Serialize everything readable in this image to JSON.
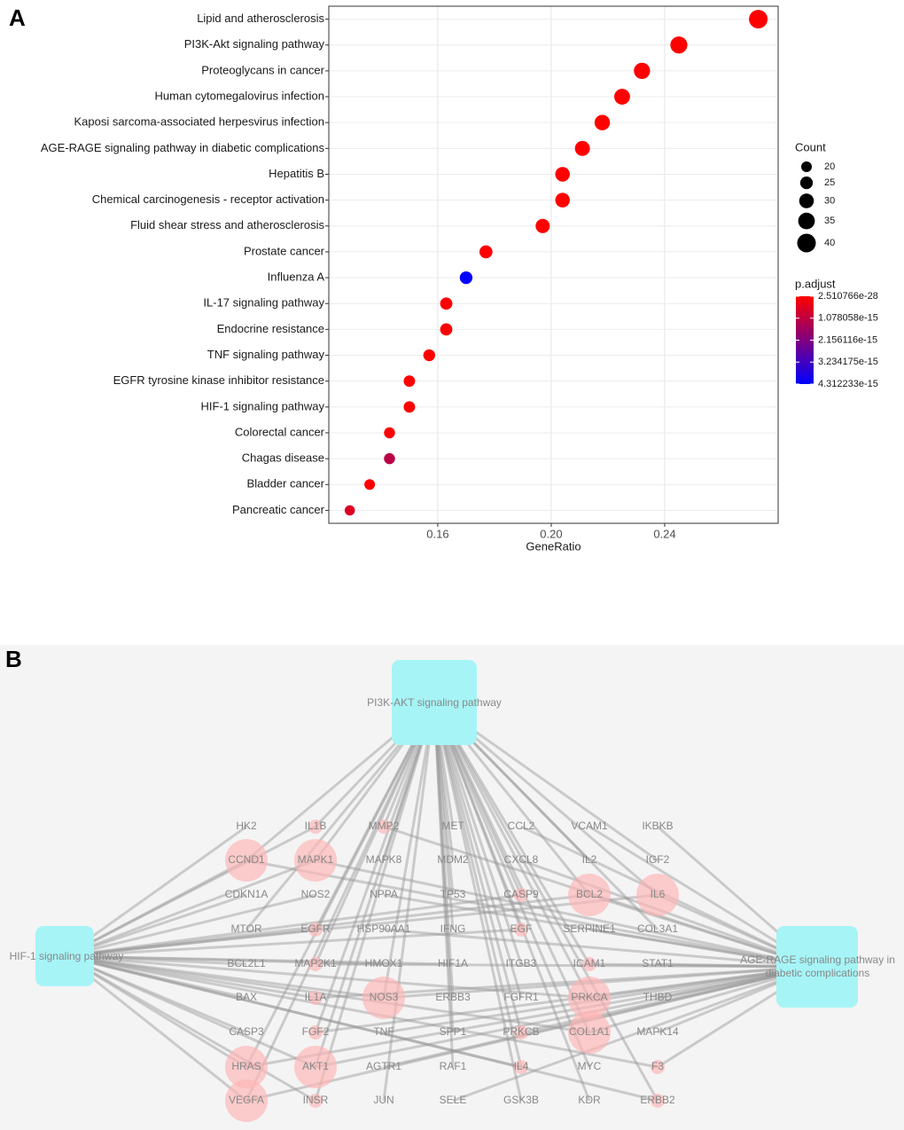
{
  "panel_labels": [
    "A",
    "B"
  ],
  "chart_data": {
    "type": "dot",
    "categories": [
      "Lipid and atherosclerosis",
      "PI3K-Akt signaling pathway",
      "Proteoglycans in cancer",
      "Human cytomegalovirus infection",
      "Kaposi sarcoma-associated herpesvirus infection",
      "AGE-RAGE signaling pathway in diabetic complications",
      "Hepatitis B",
      "Chemical carcinogenesis - receptor activation",
      "Fluid shear stress and atherosclerosis",
      "Prostate cancer",
      "Influenza A",
      "IL-17 signaling pathway",
      "Endocrine resistance",
      "TNF signaling pathway",
      "EGFR tyrosine kinase inhibitor resistance",
      "HIF-1 signaling pathway",
      "Colorectal cancer",
      "Chagas disease",
      "Bladder cancer",
      "Pancreatic cancer"
    ],
    "values": [
      0.273,
      0.245,
      0.232,
      0.225,
      0.218,
      0.211,
      0.204,
      0.204,
      0.197,
      0.177,
      0.17,
      0.163,
      0.163,
      0.157,
      0.15,
      0.15,
      0.143,
      0.143,
      0.136,
      0.129
    ],
    "count": [
      40,
      36,
      34,
      33,
      32,
      31,
      30,
      30,
      29,
      26,
      25,
      24,
      24,
      23,
      22,
      22,
      21,
      21,
      20,
      19
    ],
    "p_adjust": [
      2.510766e-28,
      1e-24,
      1e-22,
      1e-21,
      1e-20,
      1e-19,
      1e-19,
      1e-18,
      1e-18,
      2e-17,
      4.312233e-15,
      1e-17,
      5e-17,
      1e-17,
      1e-17,
      1e-17,
      5e-17,
      1.2e-15,
      5e-17,
      6e-16
    ],
    "xlabel": "GeneRatio",
    "xlim": [
      0.1216,
      0.28
    ],
    "xticks": [
      0.16,
      0.2,
      0.24
    ],
    "xtick_labels": [
      "0.16",
      "0.20",
      "0.24"
    ],
    "grid": true,
    "size_legend": {
      "title": "Count",
      "values": [
        20,
        25,
        30,
        35,
        40
      ]
    },
    "color_legend": {
      "title": "p.adjust",
      "clim": [
        2.510766e-28,
        4.312233e-15
      ],
      "ticks": [
        2.510766e-28,
        1.078058e-15,
        2.156116e-15,
        3.234175e-15,
        4.312233e-15
      ],
      "colors": [
        "#ff0000",
        "#0000ff"
      ]
    }
  },
  "network": {
    "hubs": [
      "PI3K-AKT signaling pathway",
      "HIF-1 signaling pathway",
      "AGE-RAGE signaling pathway in diabetic complications"
    ],
    "rows": [
      [
        {
          "label": "HK2",
          "hubs": [
            1
          ]
        },
        {
          "label": "IL1B",
          "hubs": [
            0,
            1
          ]
        },
        {
          "label": "MMP2",
          "hubs": [
            0,
            2
          ]
        },
        {
          "label": "MET",
          "hubs": [
            0
          ]
        },
        {
          "label": "CCL2",
          "hubs": [
            2
          ]
        },
        {
          "label": "VCAM1",
          "hubs": [
            2
          ]
        },
        {
          "label": "IKBKB",
          "hubs": [
            2
          ]
        }
      ],
      [
        {
          "label": "CCND1",
          "hubs": [
            0,
            1,
            2
          ]
        },
        {
          "label": "MAPK1",
          "hubs": [
            0,
            1,
            2
          ]
        },
        {
          "label": "MAPK8",
          "hubs": [
            0
          ]
        },
        {
          "label": "MDM2",
          "hubs": [
            0
          ]
        },
        {
          "label": "CXCL8",
          "hubs": [
            2
          ]
        },
        {
          "label": "IL2",
          "hubs": [
            0
          ]
        },
        {
          "label": "IGF2",
          "hubs": [
            0
          ]
        }
      ],
      [
        {
          "label": "CDKN1A",
          "hubs": [
            1
          ]
        },
        {
          "label": "NOS2",
          "hubs": [
            1
          ]
        },
        {
          "label": "NPPA",
          "hubs": [
            2
          ]
        },
        {
          "label": "TP53",
          "hubs": [
            0
          ]
        },
        {
          "label": "CASP9",
          "hubs": [
            0,
            1
          ]
        },
        {
          "label": "BCL2",
          "hubs": [
            0,
            1,
            2
          ]
        },
        {
          "label": "IL6",
          "hubs": [
            0,
            1,
            2
          ]
        }
      ],
      [
        {
          "label": "MTOR",
          "hubs": [
            0
          ]
        },
        {
          "label": "EGFR",
          "hubs": [
            0,
            1
          ]
        },
        {
          "label": "HSP90AA1",
          "hubs": [
            2
          ]
        },
        {
          "label": "IFNG",
          "hubs": [
            0
          ]
        },
        {
          "label": "EGF",
          "hubs": [
            0,
            1
          ]
        },
        {
          "label": "SERPINE1",
          "hubs": [
            2
          ]
        },
        {
          "label": "COL3A1",
          "hubs": [
            0
          ]
        }
      ],
      [
        {
          "label": "BCL2L1",
          "hubs": [
            1
          ]
        },
        {
          "label": "MAP2K1",
          "hubs": [
            0,
            2
          ]
        },
        {
          "label": "HMOX1",
          "hubs": [
            1
          ]
        },
        {
          "label": "HIF1A",
          "hubs": [
            1
          ]
        },
        {
          "label": "ITGB3",
          "hubs": [
            0
          ]
        },
        {
          "label": "ICAM1",
          "hubs": [
            0,
            2
          ]
        },
        {
          "label": "STAT1",
          "hubs": [
            2
          ]
        }
      ],
      [
        {
          "label": "BAX",
          "hubs": [
            1
          ]
        },
        {
          "label": "IL1A",
          "hubs": [
            1,
            2
          ]
        },
        {
          "label": "NOS3",
          "hubs": [
            0,
            1,
            2
          ]
        },
        {
          "label": "ERBB3",
          "hubs": [
            0
          ]
        },
        {
          "label": "FGFR1",
          "hubs": [
            0
          ]
        },
        {
          "label": "PRKCA",
          "hubs": [
            0,
            1,
            2
          ]
        },
        {
          "label": "THBD",
          "hubs": [
            2
          ]
        }
      ],
      [
        {
          "label": "CASP3",
          "hubs": [
            1
          ]
        },
        {
          "label": "FGF2",
          "hubs": [
            0,
            2
          ]
        },
        {
          "label": "TNF",
          "hubs": [
            2
          ]
        },
        {
          "label": "SPP1",
          "hubs": [
            0
          ]
        },
        {
          "label": "PRKCB",
          "hubs": [
            0,
            2
          ]
        },
        {
          "label": "COL1A1",
          "hubs": [
            0,
            1,
            2
          ]
        },
        {
          "label": "MAPK14",
          "hubs": [
            2
          ]
        }
      ],
      [
        {
          "label": "HRAS",
          "hubs": [
            0,
            1,
            2
          ]
        },
        {
          "label": "AKT1",
          "hubs": [
            0,
            1,
            2
          ]
        },
        {
          "label": "AGTR1",
          "hubs": [
            2
          ]
        },
        {
          "label": "RAF1",
          "hubs": [
            0
          ]
        },
        {
          "label": "IL4",
          "hubs": [
            0,
            1
          ]
        },
        {
          "label": "MYC",
          "hubs": [
            0
          ]
        },
        {
          "label": "F3",
          "hubs": [
            1,
            2
          ]
        }
      ],
      [
        {
          "label": "VEGFA",
          "hubs": [
            0,
            1,
            2
          ]
        },
        {
          "label": "INSR",
          "hubs": [
            0,
            1
          ]
        },
        {
          "label": "JUN",
          "hubs": [
            0
          ]
        },
        {
          "label": "SELE",
          "hubs": [
            2
          ]
        },
        {
          "label": "GSK3B",
          "hubs": [
            0
          ]
        },
        {
          "label": "KDR",
          "hubs": [
            0
          ]
        },
        {
          "label": "ERBB2",
          "hubs": [
            0,
            1
          ]
        }
      ]
    ]
  }
}
